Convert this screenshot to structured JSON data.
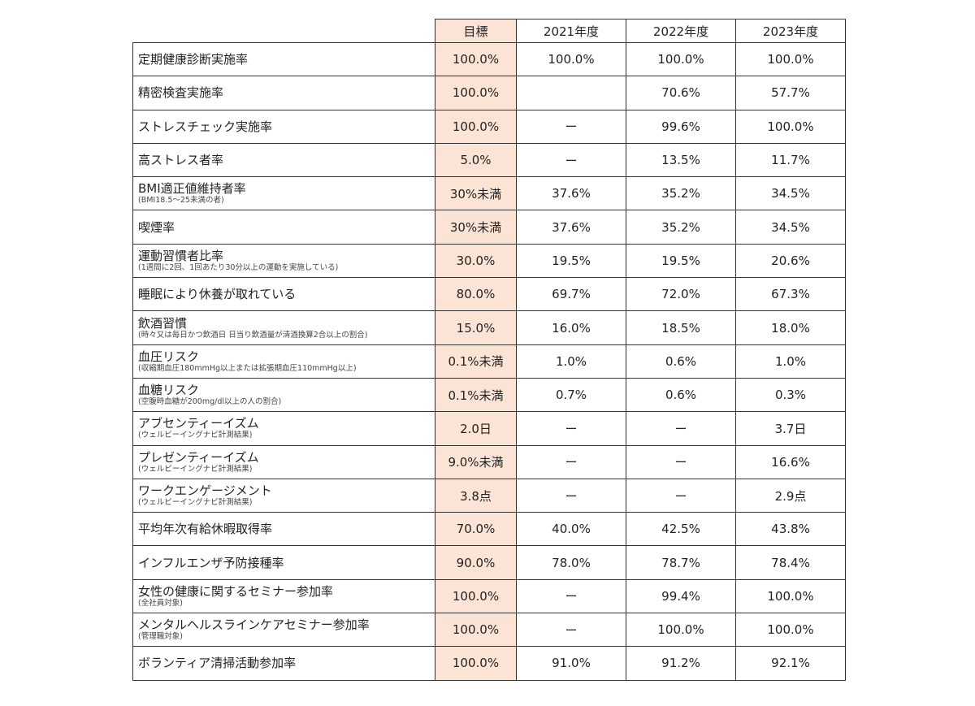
{
  "table": {
    "header": [
      "目標",
      "2021年度",
      "2022年度",
      "2023年度"
    ],
    "rows": [
      {
        "label": "定期健康診断実施率",
        "cells": [
          "100.0%",
          "100.0%",
          "100.0%",
          "100.0%"
        ]
      },
      {
        "label": "精密検査実施率",
        "cells": [
          "100.0%",
          null,
          "70.6%",
          "57.7%"
        ]
      },
      {
        "label": "ストレスチェック実施率",
        "cells": [
          "100.0%",
          "ー",
          "99.6%",
          "100.0%"
        ]
      },
      {
        "label": "高ストレス者率",
        "cells": [
          "5.0%",
          "ー",
          "13.5%",
          "11.7%"
        ]
      },
      {
        "label": "BMI適正値維持者率",
        "note": "(BMI18.5〜25未満の者)",
        "cells": [
          "30%未満",
          "37.6%",
          "35.2%",
          "34.5%"
        ]
      },
      {
        "label": "喫煙率",
        "cells": [
          "30%未満",
          "37.6%",
          "35.2%",
          "34.5%"
        ]
      },
      {
        "label": "運動習慣者比率",
        "note": "(1週間に2回、1回あたり30分以上の運動を実施している)",
        "cells": [
          "30.0%",
          "19.5%",
          "19.5%",
          "20.6%"
        ]
      },
      {
        "label": "睡眠により休養が取れている",
        "cells": [
          "80.0%",
          "69.7%",
          "72.0%",
          "67.3%"
        ]
      },
      {
        "label": "飲酒習慣",
        "note": "(時々又は毎日かつ飲酒日 日当り飲酒量が清酒換算2合以上の割合)",
        "cells": [
          "15.0%",
          "16.0%",
          "18.5%",
          "18.0%"
        ]
      },
      {
        "label": "血圧リスク",
        "note": "(収縮期血圧180mmHg以上または拡張期血圧110mmHg以上)",
        "cells": [
          "0.1%未満",
          "1.0%",
          "0.6%",
          "1.0%"
        ]
      },
      {
        "label": "血糖リスク",
        "note": "(空腹時血糖が200mg/dl以上の人の割合)",
        "cells": [
          "0.1%未満",
          "0.7%",
          "0.6%",
          "0.3%"
        ]
      },
      {
        "label": "アブセンティーイズム",
        "note": "(ウェルビーイングナビ計測結果)",
        "cells": [
          "2.0日",
          "ー",
          "ー",
          "3.7日"
        ]
      },
      {
        "label": "プレゼンティーイズム",
        "note": "(ウェルビーイングナビ計測結果)",
        "cells": [
          "9.0%未満",
          "ー",
          "ー",
          "16.6%"
        ]
      },
      {
        "label": "ワークエンゲージメント",
        "note": "(ウェルビーイングナビ計測結果)",
        "cells": [
          "3.8点",
          "ー",
          "ー",
          "2.9点"
        ]
      },
      {
        "label": "平均年次有給休暇取得率",
        "cells": [
          "70.0%",
          "40.0%",
          "42.5%",
          "43.8%"
        ]
      },
      {
        "label": "インフルエンザ予防接種率",
        "cells": [
          "90.0%",
          "78.0%",
          "78.7%",
          "78.4%"
        ]
      },
      {
        "label": "女性の健康に関するセミナー参加率",
        "note": "(全社員対象)",
        "cells": [
          "100.0%",
          "ー",
          "99.4%",
          "100.0%"
        ]
      },
      {
        "label": "メンタルヘルスラインケアセミナー参加率",
        "note": "(管理職対象)",
        "cells": [
          "100.0%",
          "ー",
          "100.0%",
          "100.0%"
        ]
      },
      {
        "label": "ボランティア清掃活動参加率",
        "cells": [
          "100.0%",
          "91.0%",
          "91.2%",
          "92.1%"
        ]
      }
    ]
  }
}
